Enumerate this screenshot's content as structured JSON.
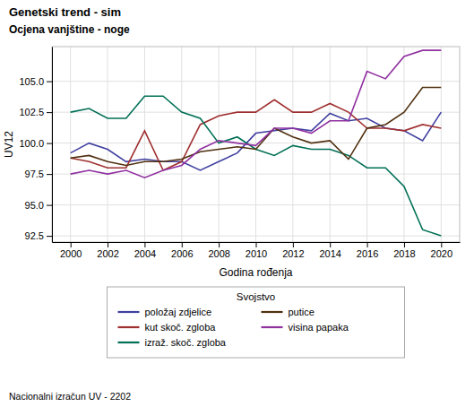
{
  "chart_data": {
    "type": "line",
    "title": "Genetski trend - sim",
    "subtitle": "Ocjena vanjštine - noge",
    "x_label": "Godina rođenja",
    "y_label": "UV12",
    "footnote": "Nacionalni izračun UV - 2202",
    "legend_title": "Svojstvo",
    "legend": "bottom",
    "grid": true,
    "xlim": [
      1999,
      2021
    ],
    "ylim": [
      92.0,
      107.8
    ],
    "xticks": [
      2000,
      2002,
      2004,
      2006,
      2008,
      2010,
      2012,
      2014,
      2016,
      2018,
      2020
    ],
    "yticks": [
      92.5,
      {
        "value": 95.0,
        "label": "95.0"
      },
      97.5,
      {
        "value": 100.0,
        "label": "100.0"
      },
      102.5,
      {
        "value": 105.0,
        "label": "105.0"
      }
    ],
    "x": [
      2000,
      2001,
      2002,
      2003,
      2004,
      2005,
      2006,
      2007,
      2008,
      2009,
      2010,
      2011,
      2012,
      2013,
      2014,
      2015,
      2016,
      2017,
      2018,
      2019,
      2020
    ],
    "series": [
      {
        "name": "položaj zdjelice",
        "color": "#4040a0",
        "values": [
          99.2,
          100.0,
          99.5,
          98.5,
          98.7,
          98.5,
          98.5,
          97.8,
          98.5,
          99.2,
          100.8,
          101.0,
          101.2,
          101.0,
          102.4,
          101.8,
          102.0,
          101.2,
          101.0,
          100.2,
          102.5
        ]
      },
      {
        "name": "kut skoč. zgloba",
        "color": "#a03030",
        "values": [
          98.8,
          98.5,
          98.0,
          98.0,
          101.0,
          97.8,
          98.5,
          101.5,
          102.2,
          102.5,
          102.5,
          103.5,
          102.5,
          102.5,
          103.2,
          102.5,
          101.2,
          101.2,
          101.0,
          101.5,
          101.2
        ]
      },
      {
        "name": "izraž. skoč. zgloba",
        "color": "#007055",
        "values": [
          102.5,
          102.8,
          102.0,
          102.0,
          103.8,
          103.8,
          102.5,
          102.0,
          100.0,
          100.5,
          99.5,
          99.0,
          99.8,
          99.5,
          99.5,
          99.0,
          98.0,
          98.0,
          96.5,
          93.0,
          92.5
        ]
      },
      {
        "name": "putice",
        "color": "#503010",
        "values": [
          98.8,
          99.0,
          98.5,
          98.2,
          98.5,
          98.5,
          98.7,
          99.3,
          99.5,
          99.7,
          99.5,
          101.2,
          100.5,
          100.0,
          100.2,
          98.7,
          101.2,
          101.5,
          102.5,
          104.5,
          104.5
        ]
      },
      {
        "name": "visina papaka",
        "color": "#9030a0",
        "values": [
          97.5,
          97.8,
          97.5,
          97.8,
          97.2,
          97.8,
          98.2,
          99.5,
          100.2,
          100.0,
          99.8,
          101.2,
          101.2,
          100.8,
          101.8,
          101.8,
          105.8,
          105.2,
          107.0,
          107.5,
          107.5
        ]
      }
    ]
  }
}
